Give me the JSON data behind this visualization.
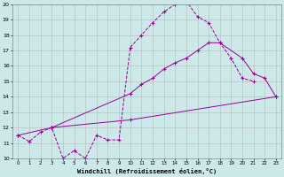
{
  "xlabel": "Windchill (Refroidissement éolien,°C)",
  "bg_color": "#cce8e8",
  "line_color": "#990099",
  "grid_color": "#bbbbbb",
  "xlim": [
    -0.5,
    23.5
  ],
  "ylim": [
    10,
    20
  ],
  "xticks": [
    0,
    1,
    2,
    3,
    4,
    5,
    6,
    7,
    8,
    9,
    10,
    11,
    12,
    13,
    14,
    15,
    16,
    17,
    18,
    19,
    20,
    21,
    22,
    23
  ],
  "yticks": [
    10,
    11,
    12,
    13,
    14,
    15,
    16,
    17,
    18,
    19,
    20
  ],
  "series": [
    {
      "x": [
        0,
        1,
        2,
        3,
        4,
        5,
        6,
        7,
        8,
        9,
        10,
        11,
        12,
        13,
        14,
        15,
        16,
        17,
        18,
        19,
        20,
        21
      ],
      "y": [
        11.5,
        11.1,
        11.7,
        12.0,
        10.0,
        10.5,
        10.0,
        11.5,
        11.2,
        11.2,
        17.2,
        18.0,
        18.8,
        19.5,
        20.0,
        20.2,
        19.2,
        18.8,
        17.5,
        16.5,
        15.2,
        15.0
      ],
      "linestyle": "--"
    },
    {
      "x": [
        3,
        10,
        11,
        12,
        13,
        14,
        15,
        16,
        17,
        18,
        20,
        21,
        22,
        23
      ],
      "y": [
        12.0,
        14.2,
        14.8,
        15.2,
        15.8,
        16.2,
        16.5,
        17.0,
        17.5,
        17.5,
        16.5,
        15.5,
        15.2,
        14.0
      ],
      "linestyle": "-"
    },
    {
      "x": [
        0,
        3,
        10,
        23
      ],
      "y": [
        11.5,
        12.0,
        12.5,
        14.0
      ],
      "linestyle": "-"
    }
  ]
}
